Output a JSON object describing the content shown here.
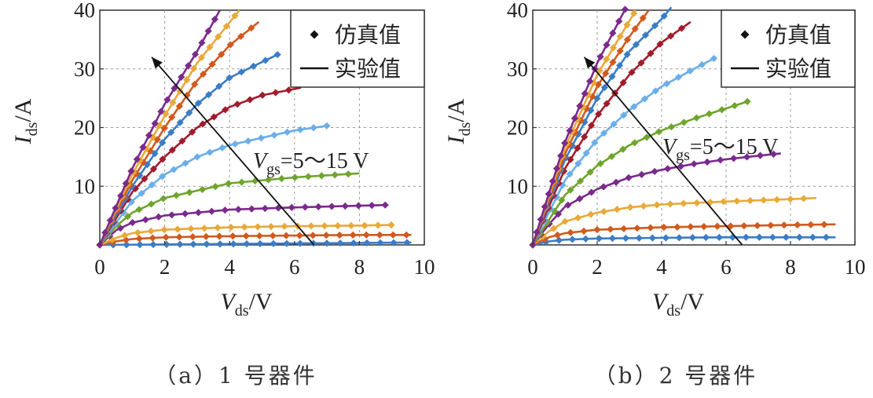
{
  "chart_data": [
    {
      "type": "line",
      "caption": "（a）1 号器件",
      "xlim": [
        0,
        10
      ],
      "ylim": [
        0,
        40
      ],
      "xticks": [
        "0",
        "2",
        "4",
        "6",
        "8",
        "10"
      ],
      "yticks": [
        "10",
        "20",
        "30",
        "40"
      ],
      "xlabel": {
        "main": "V",
        "sub": "ds",
        "unit": "/V"
      },
      "ylabel": {
        "main": "I",
        "sub": "ds",
        "unit": "/A"
      },
      "grid": true,
      "legend": {
        "position": "top-right",
        "marker_label": "仿真值",
        "line_label": "实验值"
      },
      "annotation": {
        "prefix": "V",
        "sub": "gs",
        "text": "=5～15 V"
      },
      "series": [
        {
          "color": "#3b7cc6",
          "values": [
            [
              0,
              0
            ],
            [
              9.6,
              0.4
            ]
          ]
        },
        {
          "color": "#d05a1e",
          "values": [
            [
              0,
              0
            ],
            [
              0.5,
              0.6
            ],
            [
              1,
              1
            ],
            [
              2,
              1.3
            ],
            [
              4,
              1.5
            ],
            [
              6,
              1.6
            ],
            [
              8,
              1.7
            ],
            [
              9.6,
              1.7
            ]
          ]
        },
        {
          "color": "#e8a93b",
          "values": [
            [
              0,
              0
            ],
            [
              0.5,
              1.2
            ],
            [
              1,
              2
            ],
            [
              2,
              2.6
            ],
            [
              4,
              3
            ],
            [
              6,
              3.2
            ],
            [
              8,
              3.3
            ],
            [
              9,
              3.4
            ]
          ]
        },
        {
          "color": "#7a2a8c",
          "values": [
            [
              0,
              0
            ],
            [
              0.5,
              2.5
            ],
            [
              1,
              3.8
            ],
            [
              2,
              5
            ],
            [
              4,
              6
            ],
            [
              6,
              6.4
            ],
            [
              8.8,
              6.8
            ]
          ]
        },
        {
          "color": "#6fa52d",
          "values": [
            [
              0,
              0
            ],
            [
              0.5,
              3.2
            ],
            [
              1,
              5.5
            ],
            [
              2,
              8
            ],
            [
              4,
              10.5
            ],
            [
              6,
              11.5
            ],
            [
              8,
              12.2
            ]
          ]
        },
        {
          "color": "#6baee8",
          "values": [
            [
              0,
              0
            ],
            [
              1,
              7.5
            ],
            [
              2,
              12
            ],
            [
              3,
              15
            ],
            [
              4,
              17
            ],
            [
              6,
              19.5
            ],
            [
              7,
              20.3
            ]
          ]
        },
        {
          "color": "#a01c2c",
          "values": [
            [
              0,
              0
            ],
            [
              1,
              9
            ],
            [
              2,
              15
            ],
            [
              3,
              20
            ],
            [
              4,
              23.5
            ],
            [
              5,
              25.5
            ],
            [
              6.2,
              26.8
            ]
          ]
        },
        {
          "color": "#3b7cc6",
          "values": [
            [
              0,
              0
            ],
            [
              1,
              10
            ],
            [
              2,
              18
            ],
            [
              3,
              24
            ],
            [
              4,
              28.5
            ],
            [
              5.5,
              32.5
            ]
          ]
        },
        {
          "color": "#d05a1e",
          "values": [
            [
              0,
              0
            ],
            [
              1,
              11
            ],
            [
              2,
              20
            ],
            [
              3,
              28
            ],
            [
              4,
              34
            ],
            [
              4.9,
              38
            ]
          ]
        },
        {
          "color": "#e8a93b",
          "values": [
            [
              0,
              0
            ],
            [
              1,
              12
            ],
            [
              2,
              22
            ],
            [
              3,
              31
            ],
            [
              4.3,
              40
            ]
          ]
        },
        {
          "color": "#7a2a8c",
          "values": [
            [
              0,
              0
            ],
            [
              1,
              13
            ],
            [
              2,
              24
            ],
            [
              3,
              33
            ],
            [
              3.7,
              40
            ]
          ]
        }
      ]
    },
    {
      "type": "line",
      "caption": "（b）2 号器件",
      "xlim": [
        0,
        10
      ],
      "ylim": [
        0,
        40
      ],
      "xticks": [
        "0",
        "2",
        "4",
        "6",
        "8",
        "10"
      ],
      "yticks": [
        "10",
        "20",
        "30",
        "40"
      ],
      "xlabel": {
        "main": "V",
        "sub": "ds",
        "unit": "/V"
      },
      "ylabel": {
        "main": "I",
        "sub": "ds",
        "unit": "/A"
      },
      "grid": true,
      "legend": {
        "position": "top-right",
        "marker_label": "仿真值",
        "line_label": "实验值"
      },
      "annotation": {
        "prefix": "V",
        "sub": "gs",
        "text": "=5～15 V"
      },
      "series": [
        {
          "color": "#3b7cc6",
          "values": [
            [
              0,
              0
            ],
            [
              0.5,
              0.6
            ],
            [
              1,
              0.9
            ],
            [
              2,
              1.1
            ],
            [
              4,
              1.2
            ],
            [
              6,
              1.3
            ],
            [
              9.4,
              1.3
            ]
          ]
        },
        {
          "color": "#d05a1e",
          "values": [
            [
              0,
              0
            ],
            [
              0.5,
              1.3
            ],
            [
              1,
              2
            ],
            [
              2,
              2.6
            ],
            [
              4,
              3
            ],
            [
              6,
              3.2
            ],
            [
              8,
              3.4
            ],
            [
              9.4,
              3.5
            ]
          ]
        },
        {
          "color": "#e8a93b",
          "values": [
            [
              0,
              0
            ],
            [
              0.5,
              2.3
            ],
            [
              1,
              4
            ],
            [
              2,
              5.5
            ],
            [
              3,
              6.4
            ],
            [
              4,
              6.9
            ],
            [
              6,
              7.4
            ],
            [
              8,
              7.8
            ],
            [
              8.8,
              8
            ]
          ]
        },
        {
          "color": "#7a2a8c",
          "values": [
            [
              0,
              0
            ],
            [
              0.5,
              3.5
            ],
            [
              1,
              6.5
            ],
            [
              2,
              9.5
            ],
            [
              3,
              11.5
            ],
            [
              4,
              12.8
            ],
            [
              5,
              13.8
            ],
            [
              6,
              14.6
            ],
            [
              7,
              15.2
            ],
            [
              7.7,
              15.6
            ]
          ]
        },
        {
          "color": "#6fa52d",
          "values": [
            [
              0,
              0
            ],
            [
              1,
              8.5
            ],
            [
              2,
              13.5
            ],
            [
              3,
              17
            ],
            [
              4,
              19.5
            ],
            [
              5,
              21.5
            ],
            [
              6.7,
              24.5
            ]
          ]
        },
        {
          "color": "#6baee8",
          "values": [
            [
              0,
              0
            ],
            [
              1,
              11
            ],
            [
              2,
              18
            ],
            [
              3,
              23
            ],
            [
              4,
              27
            ],
            [
              5,
              30
            ],
            [
              5.7,
              32
            ]
          ]
        },
        {
          "color": "#a01c2c",
          "values": [
            [
              0,
              0
            ],
            [
              1,
              13
            ],
            [
              2,
              22
            ],
            [
              3,
              29
            ],
            [
              4,
              34.5
            ],
            [
              4.9,
              38
            ]
          ]
        },
        {
          "color": "#3b7cc6",
          "values": [
            [
              0,
              0
            ],
            [
              1,
              14.5
            ],
            [
              2,
              25
            ],
            [
              3,
              33
            ],
            [
              4,
              38.5
            ],
            [
              4.3,
              40.5
            ]
          ]
        },
        {
          "color": "#d05a1e",
          "values": [
            [
              0,
              0
            ],
            [
              1,
              15.5
            ],
            [
              2,
              27
            ],
            [
              3,
              35.5
            ],
            [
              3.6,
              40
            ]
          ]
        },
        {
          "color": "#e8a93b",
          "values": [
            [
              0,
              0
            ],
            [
              1,
              16.5
            ],
            [
              2,
              29
            ],
            [
              3.2,
              40
            ]
          ]
        },
        {
          "color": "#7a2a8c",
          "values": [
            [
              0,
              0
            ],
            [
              1,
              17.5
            ],
            [
              2,
              31
            ],
            [
              2.9,
              40.5
            ]
          ]
        }
      ]
    }
  ]
}
